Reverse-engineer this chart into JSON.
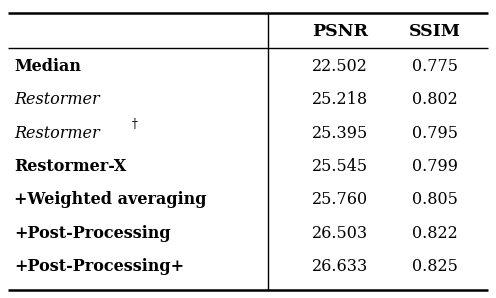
{
  "rows": [
    {
      "method": "Median",
      "psnr": "22.502",
      "ssim": "0.775",
      "bold": true,
      "italic": false
    },
    {
      "method": "Restormer",
      "psnr": "25.218",
      "ssim": "0.802",
      "bold": false,
      "italic": true
    },
    {
      "method": "Restormer",
      "dagger": true,
      "psnr": "25.395",
      "ssim": "0.795",
      "bold": false,
      "italic": true
    },
    {
      "method": "Restormer-X",
      "psnr": "25.545",
      "ssim": "0.799",
      "bold": true,
      "italic": false
    },
    {
      "method": "+Weighted averaging",
      "psnr": "25.760",
      "ssim": "0.805",
      "bold": true,
      "italic": false
    },
    {
      "method": "+Post-Processing",
      "psnr": "26.503",
      "ssim": "0.822",
      "bold": true,
      "italic": false
    },
    {
      "method": "+Post-Processing+",
      "psnr": "26.633",
      "ssim": "0.825",
      "bold": true,
      "italic": false
    }
  ],
  "header_psnr": "PSNR",
  "header_ssim": "SSIM",
  "bg_color": "#ffffff",
  "text_color": "#000000",
  "line_color": "#000000",
  "font_size": 11.5,
  "header_font_size": 12.5
}
